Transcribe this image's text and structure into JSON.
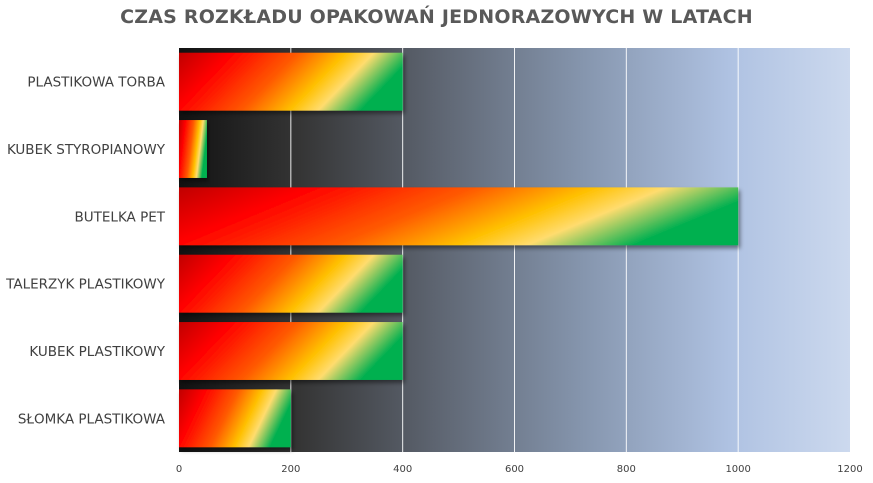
{
  "chart_data": {
    "type": "bar",
    "orientation": "horizontal",
    "title": "CZAS ROZKŁADU OPAKOWAŃ JEDNORAZOWYCH W LATACH",
    "xlabel": "",
    "ylabel": "",
    "categories": [
      "PLASTIKOWA TORBA",
      "KUBEK STYROPIANOWY",
      "BUTELKA PET",
      "TALERZYK PLASTIKOWY",
      "KUBEK PLASTIKOWY",
      "SŁOMKA PLASTIKOWA"
    ],
    "values": [
      400,
      50,
      1000,
      400,
      400,
      200
    ],
    "xlim": [
      0,
      1200
    ],
    "xticks": [
      "0",
      "200",
      "400",
      "600",
      "800",
      "1000",
      "1200"
    ],
    "grid": true,
    "legend": "none",
    "colors": {
      "bar_gradient": [
        "#c00000",
        "#ff0000",
        "#ff5a00",
        "#ffc000",
        "#ffd966",
        "#00b050"
      ],
      "plot_background_gradient": [
        "#1a1a1a",
        "#595959",
        "#8497b0",
        "#b4c7e7",
        "#dae3f3"
      ],
      "gridline": "#ffffff",
      "title": "#595959"
    }
  }
}
